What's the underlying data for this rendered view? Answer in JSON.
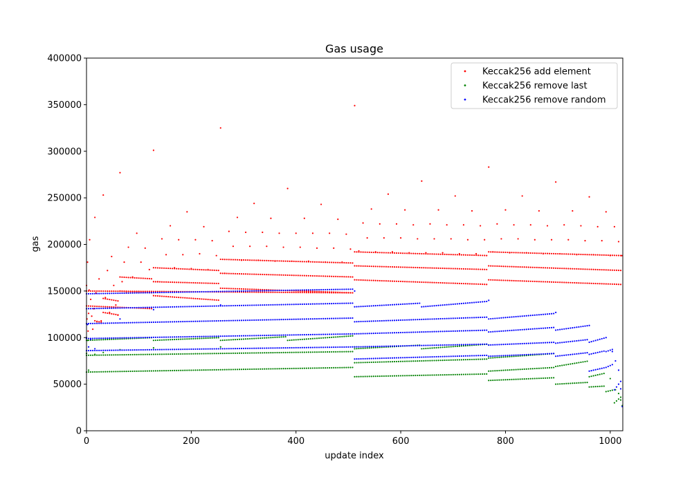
{
  "chart_data": {
    "type": "scatter",
    "title": "Gas usage",
    "xlabel": "update index",
    "ylabel": "gas",
    "xlim": [
      0,
      1024
    ],
    "ylim": [
      0,
      400000
    ],
    "xticks": [
      0,
      200,
      400,
      600,
      800,
      1000
    ],
    "yticks": [
      0,
      50000,
      100000,
      150000,
      200000,
      250000,
      300000,
      350000,
      400000
    ],
    "grid": false,
    "legend": "top-right",
    "series": [
      {
        "name": "Keccak256 add element",
        "color": "#ff0000",
        "points": [
          [
            0,
            156000
          ],
          [
            1,
            120000
          ],
          [
            2,
            181000
          ],
          [
            3,
            107000
          ],
          [
            4,
            126000
          ],
          [
            5,
            151000
          ],
          [
            6,
            205000
          ],
          [
            8,
            141000
          ],
          [
            10,
            123000
          ],
          [
            12,
            109000
          ],
          [
            14,
            131000
          ],
          [
            16,
            229000
          ],
          [
            18,
            148000
          ],
          [
            20,
            117000
          ],
          [
            24,
            163000
          ],
          [
            28,
            118000
          ],
          [
            32,
            253000
          ],
          [
            36,
            143000
          ],
          [
            40,
            172000
          ],
          [
            44,
            127000
          ],
          [
            48,
            187000
          ],
          [
            52,
            156000
          ],
          [
            56,
            135000
          ],
          [
            60,
            124000
          ],
          [
            64,
            277000
          ],
          [
            68,
            160000
          ],
          [
            72,
            181000
          ],
          [
            76,
            148000
          ],
          [
            80,
            197000
          ],
          [
            88,
            165000
          ],
          [
            96,
            212000
          ],
          [
            104,
            181000
          ],
          [
            112,
            196000
          ],
          [
            120,
            173000
          ],
          [
            128,
            301000
          ],
          [
            136,
            160000
          ],
          [
            144,
            206000
          ],
          [
            152,
            189000
          ],
          [
            160,
            220000
          ],
          [
            168,
            175000
          ],
          [
            176,
            205000
          ],
          [
            184,
            189000
          ],
          [
            192,
            235000
          ],
          [
            200,
            174000
          ],
          [
            208,
            205000
          ],
          [
            216,
            190000
          ],
          [
            224,
            219000
          ],
          [
            232,
            173000
          ],
          [
            240,
            204000
          ],
          [
            248,
            188000
          ],
          [
            256,
            325000
          ],
          [
            264,
            169000
          ],
          [
            272,
            214000
          ],
          [
            280,
            198000
          ],
          [
            288,
            229000
          ],
          [
            296,
            183000
          ],
          [
            304,
            213000
          ],
          [
            312,
            198000
          ],
          [
            320,
            244000
          ],
          [
            328,
            183000
          ],
          [
            336,
            213000
          ],
          [
            344,
            198000
          ],
          [
            352,
            228000
          ],
          [
            360,
            182000
          ],
          [
            368,
            212000
          ],
          [
            376,
            197000
          ],
          [
            384,
            260000
          ],
          [
            392,
            182000
          ],
          [
            400,
            212000
          ],
          [
            408,
            197000
          ],
          [
            416,
            228000
          ],
          [
            424,
            182000
          ],
          [
            432,
            212000
          ],
          [
            440,
            196000
          ],
          [
            448,
            243000
          ],
          [
            456,
            181000
          ],
          [
            464,
            212000
          ],
          [
            472,
            196000
          ],
          [
            480,
            227000
          ],
          [
            488,
            181000
          ],
          [
            496,
            211000
          ],
          [
            504,
            195000
          ],
          [
            512,
            349000
          ],
          [
            520,
            193000
          ],
          [
            528,
            223000
          ],
          [
            536,
            207000
          ],
          [
            544,
            238000
          ],
          [
            552,
            192000
          ],
          [
            560,
            222000
          ],
          [
            568,
            207000
          ],
          [
            576,
            254000
          ],
          [
            584,
            192000
          ],
          [
            592,
            222000
          ],
          [
            600,
            207000
          ],
          [
            608,
            237000
          ],
          [
            616,
            191000
          ],
          [
            624,
            221000
          ],
          [
            632,
            206000
          ],
          [
            640,
            268000
          ],
          [
            648,
            191000
          ],
          [
            656,
            222000
          ],
          [
            664,
            206000
          ],
          [
            672,
            237000
          ],
          [
            680,
            191000
          ],
          [
            688,
            221000
          ],
          [
            696,
            206000
          ],
          [
            704,
            252000
          ],
          [
            712,
            190000
          ],
          [
            720,
            221000
          ],
          [
            728,
            205000
          ],
          [
            736,
            236000
          ],
          [
            744,
            190000
          ],
          [
            752,
            220000
          ],
          [
            760,
            205000
          ],
          [
            768,
            283000
          ],
          [
            776,
            192000
          ],
          [
            784,
            222000
          ],
          [
            792,
            206000
          ],
          [
            800,
            237000
          ],
          [
            808,
            191000
          ],
          [
            816,
            221000
          ],
          [
            824,
            206000
          ],
          [
            832,
            252000
          ],
          [
            840,
            191000
          ],
          [
            848,
            221000
          ],
          [
            856,
            205000
          ],
          [
            864,
            236000
          ],
          [
            872,
            190000
          ],
          [
            880,
            220000
          ],
          [
            888,
            205000
          ],
          [
            896,
            267000
          ],
          [
            904,
            190000
          ],
          [
            912,
            221000
          ],
          [
            920,
            205000
          ],
          [
            928,
            236000
          ],
          [
            936,
            189000
          ],
          [
            944,
            220000
          ],
          [
            952,
            204000
          ],
          [
            960,
            251000
          ],
          [
            968,
            189000
          ],
          [
            976,
            219000
          ],
          [
            984,
            204000
          ],
          [
            992,
            235000
          ],
          [
            1000,
            188000
          ],
          [
            1008,
            219000
          ],
          [
            1016,
            203000
          ],
          [
            1022,
            188000
          ]
        ],
        "bands": [
          [
            0,
            512,
            150000,
            148000
          ],
          [
            0,
            128,
            134000,
            131000
          ],
          [
            128,
            256,
            145000,
            140000
          ],
          [
            256,
            512,
            153000,
            148000
          ],
          [
            64,
            128,
            150000,
            148000
          ],
          [
            128,
            256,
            160000,
            158000
          ],
          [
            256,
            512,
            169000,
            165000
          ],
          [
            128,
            256,
            175000,
            172000
          ],
          [
            256,
            512,
            184000,
            180000
          ],
          [
            512,
            768,
            162000,
            157000
          ],
          [
            512,
            768,
            177000,
            173000
          ],
          [
            512,
            768,
            192000,
            188000
          ],
          [
            768,
            1024,
            162000,
            157000
          ],
          [
            768,
            1024,
            177000,
            172000
          ],
          [
            768,
            1024,
            192000,
            188000
          ],
          [
            16,
            32,
            118000,
            116000
          ],
          [
            32,
            64,
            127000,
            124000
          ],
          [
            32,
            64,
            142000,
            139000
          ],
          [
            64,
            128,
            165000,
            163000
          ]
        ]
      },
      {
        "name": "Keccak256 remove last",
        "color": "#008000",
        "points": [
          [
            0,
            83000
          ],
          [
            2,
            97000
          ],
          [
            4,
            65000
          ],
          [
            8,
            98000
          ],
          [
            16,
            82000
          ],
          [
            32,
            84000
          ],
          [
            64,
            87000
          ],
          [
            128,
            89000
          ],
          [
            256,
            90000
          ],
          [
            512,
            90000
          ],
          [
            768,
            92000
          ],
          [
            1000,
            56000
          ],
          [
            1010,
            44000
          ],
          [
            1016,
            40000
          ],
          [
            1020,
            33000
          ],
          [
            1023,
            27000
          ]
        ],
        "bands": [
          [
            0,
            128,
            97000,
            100000
          ],
          [
            128,
            256,
            97000,
            100000
          ],
          [
            256,
            384,
            97000,
            101000
          ],
          [
            384,
            512,
            97000,
            102000
          ],
          [
            0,
            512,
            81000,
            85000
          ],
          [
            0,
            512,
            63000,
            68000
          ],
          [
            512,
            640,
            88000,
            92000
          ],
          [
            640,
            768,
            88000,
            93000
          ],
          [
            512,
            768,
            73000,
            77000
          ],
          [
            512,
            768,
            58000,
            61000
          ],
          [
            768,
            896,
            78000,
            83000
          ],
          [
            768,
            896,
            64000,
            68000
          ],
          [
            768,
            896,
            54000,
            57000
          ],
          [
            896,
            960,
            69000,
            75000
          ],
          [
            896,
            960,
            50000,
            52000
          ],
          [
            960,
            992,
            58000,
            62000
          ],
          [
            960,
            992,
            47000,
            48000
          ],
          [
            992,
            1008,
            42000,
            44000
          ],
          [
            1008,
            1024,
            30000,
            38000
          ]
        ]
      },
      {
        "name": "Keccak256 remove random",
        "color": "#0000ff",
        "points": [
          [
            0,
            100000
          ],
          [
            2,
            114000
          ],
          [
            4,
            90000
          ],
          [
            8,
            98000
          ],
          [
            16,
            88000
          ],
          [
            64,
            120000
          ],
          [
            128,
            130000
          ],
          [
            256,
            135000
          ],
          [
            512,
            150000
          ],
          [
            768,
            140000
          ],
          [
            896,
            127000
          ],
          [
            960,
            113000
          ],
          [
            992,
            100000
          ],
          [
            1004,
            85000
          ],
          [
            1010,
            75000
          ],
          [
            1016,
            65000
          ],
          [
            1020,
            45000
          ],
          [
            1023,
            26000
          ]
        ],
        "bands": [
          [
            0,
            512,
            147000,
            152000
          ],
          [
            0,
            512,
            131000,
            137000
          ],
          [
            0,
            512,
            115000,
            121000
          ],
          [
            0,
            512,
            99000,
            104000
          ],
          [
            0,
            512,
            86000,
            90000
          ],
          [
            512,
            640,
            133000,
            137000
          ],
          [
            640,
            768,
            133000,
            139000
          ],
          [
            512,
            768,
            117000,
            122000
          ],
          [
            512,
            768,
            104000,
            108000
          ],
          [
            512,
            768,
            90000,
            93000
          ],
          [
            512,
            768,
            77000,
            81000
          ],
          [
            768,
            896,
            120000,
            126000
          ],
          [
            768,
            896,
            106000,
            111000
          ],
          [
            768,
            896,
            92000,
            95000
          ],
          [
            768,
            896,
            80000,
            83000
          ],
          [
            896,
            960,
            108000,
            113000
          ],
          [
            896,
            960,
            94000,
            98000
          ],
          [
            896,
            960,
            80000,
            84000
          ],
          [
            960,
            992,
            95000,
            100000
          ],
          [
            960,
            992,
            82000,
            86000
          ],
          [
            960,
            992,
            64000,
            68000
          ],
          [
            992,
            1008,
            85000,
            88000
          ],
          [
            992,
            1008,
            68000,
            72000
          ],
          [
            1008,
            1024,
            44000,
            56000
          ]
        ]
      }
    ]
  }
}
